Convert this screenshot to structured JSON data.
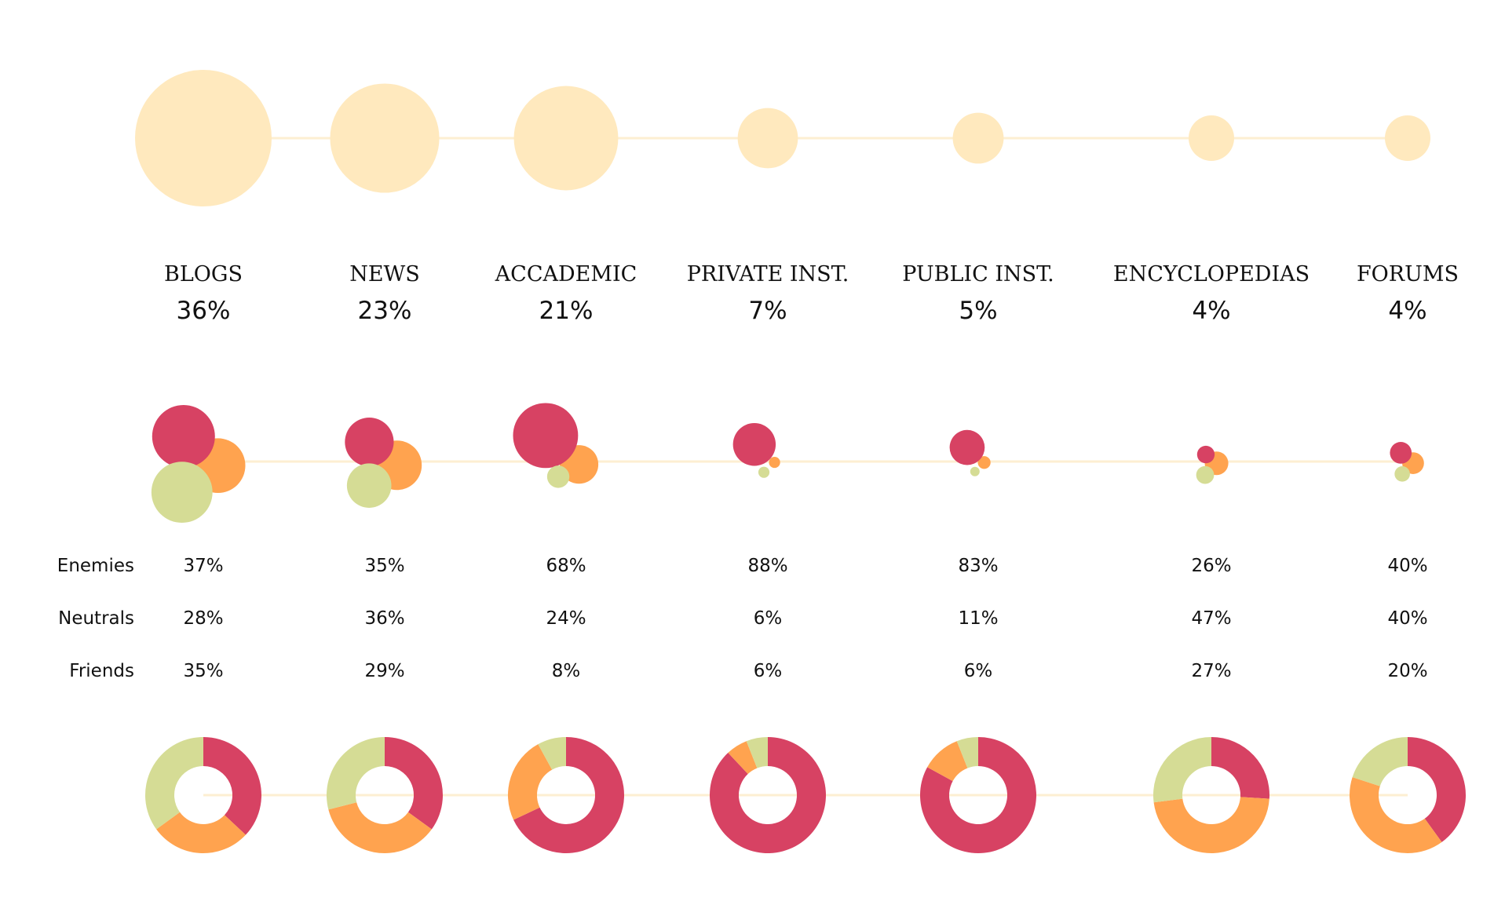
{
  "chart_data": {
    "type": "bubble-donut",
    "categories": [
      "BLOGS",
      "NEWS",
      "ACCADEMIC",
      "PRIVATE INST.",
      "PUBLIC INST.",
      "ENCYCLOPEDIAS",
      "FORUMS"
    ],
    "shares": [
      36,
      23,
      21,
      7,
      5,
      4,
      4
    ],
    "share_labels": [
      "36%",
      "23%",
      "21%",
      "7%",
      "5%",
      "4%",
      "4%"
    ],
    "series": [
      {
        "name": "Enemies",
        "values": [
          37,
          35,
          68,
          88,
          83,
          26,
          40
        ],
        "labels": [
          "37%",
          "35%",
          "68%",
          "88%",
          "83%",
          "26%",
          "40%"
        ]
      },
      {
        "name": "Neutrals",
        "values": [
          28,
          36,
          24,
          6,
          11,
          47,
          40
        ],
        "labels": [
          "28%",
          "36%",
          "24%",
          "6%",
          "11%",
          "47%",
          "40%"
        ]
      },
      {
        "name": "Friends",
        "values": [
          35,
          29,
          8,
          6,
          6,
          27,
          20
        ],
        "labels": [
          "35%",
          "29%",
          "8%",
          "6%",
          "6%",
          "27%",
          "20%"
        ]
      }
    ],
    "colors": {
      "share": "#FFE9BE",
      "connector": "#FDEFD2",
      "Enemies": "#D74263",
      "Neutrals": "#FFA34F",
      "Friends": "#D5DC95"
    }
  }
}
